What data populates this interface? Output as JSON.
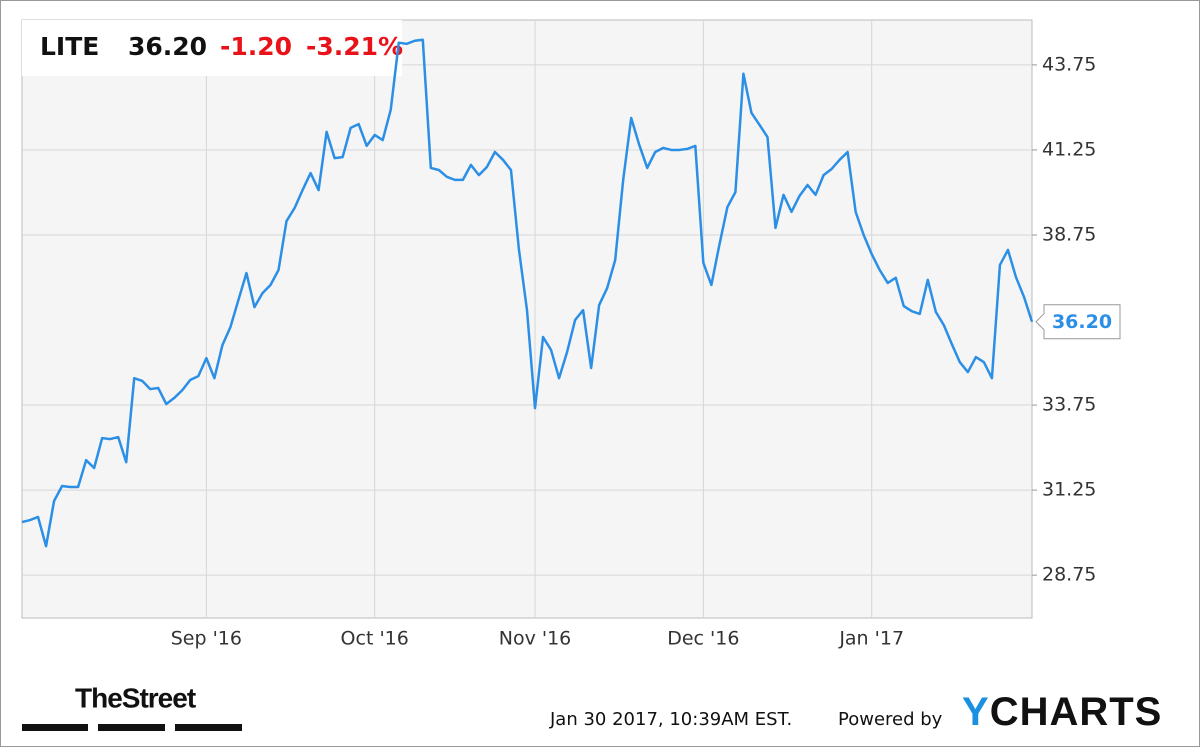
{
  "chart_data": {
    "type": "line",
    "ticker": "LITE",
    "price": "36.20",
    "change": "-1.20",
    "change_pct": "-3.21%",
    "timestamp": "Jan 30 2017, 10:39AM EST.",
    "powered_by": "Powered by",
    "brand": "YCHARTS",
    "source": "TheStreet",
    "color": "#2c8fe6",
    "categories": [
      null,
      null,
      null,
      null,
      null,
      null,
      null,
      null,
      null,
      null,
      null,
      null,
      null,
      null,
      null,
      null,
      null,
      null,
      null,
      null,
      null,
      null,
      null,
      "Sep '16",
      null,
      null,
      null,
      null,
      null,
      null,
      null,
      null,
      null,
      null,
      null,
      null,
      null,
      null,
      null,
      null,
      null,
      null,
      null,
      null,
      "Oct '16",
      null,
      null,
      null,
      null,
      null,
      null,
      null,
      null,
      null,
      null,
      null,
      null,
      null,
      null,
      null,
      null,
      null,
      null,
      null,
      "Nov '16",
      null,
      null,
      null,
      null,
      null,
      null,
      null,
      null,
      null,
      null,
      null,
      null,
      null,
      null,
      null,
      null,
      null,
      null,
      null,
      null,
      "Dec '16",
      null,
      null,
      null,
      null,
      null,
      null,
      null,
      null,
      null,
      null,
      null,
      null,
      null,
      null,
      null,
      null,
      null,
      null,
      null,
      null,
      "Jan '17",
      null,
      null,
      null,
      null,
      null,
      null,
      null,
      null,
      null,
      null,
      null,
      null,
      null,
      null,
      null,
      null,
      null,
      null,
      null,
      null
    ],
    "values": [
      30.31,
      30.37,
      30.46,
      29.6,
      30.93,
      31.37,
      31.34,
      31.34,
      32.13,
      31.9,
      32.78,
      32.75,
      32.81,
      32.07,
      34.54,
      34.46,
      34.22,
      34.25,
      33.78,
      33.96,
      34.19,
      34.49,
      34.6,
      35.13,
      34.54,
      35.51,
      36.04,
      36.84,
      37.63,
      36.63,
      37.04,
      37.28,
      37.72,
      39.16,
      39.54,
      40.07,
      40.57,
      40.07,
      41.78,
      41.01,
      41.04,
      41.9,
      42.01,
      41.37,
      41.69,
      41.54,
      42.43,
      44.4,
      44.37,
      44.46,
      44.49,
      40.72,
      40.66,
      40.46,
      40.37,
      40.37,
      40.81,
      40.51,
      40.75,
      41.19,
      40.96,
      40.66,
      38.31,
      36.54,
      33.66,
      35.75,
      35.37,
      34.54,
      35.31,
      36.25,
      36.54,
      34.84,
      36.69,
      37.19,
      38.01,
      40.37,
      42.19,
      41.4,
      40.72,
      41.19,
      41.31,
      41.25,
      41.25,
      41.28,
      41.37,
      37.93,
      37.28,
      38.46,
      39.57,
      40.01,
      43.49,
      42.34,
      41.99,
      41.63,
      38.96,
      39.93,
      39.43,
      39.9,
      40.22,
      39.93,
      40.51,
      40.69,
      40.96,
      41.19,
      39.43,
      38.75,
      38.19,
      37.72,
      37.34,
      37.49,
      36.66,
      36.51,
      36.43,
      37.43,
      36.49,
      36.1,
      35.54,
      35.01,
      34.72,
      35.16,
      35.01,
      34.54,
      37.87,
      38.31,
      37.51,
      36.93,
      36.2
    ],
    "ylim": [
      27.49,
      45.07
    ],
    "yticks": [
      {
        "value": 28.75,
        "label": "28.75"
      },
      {
        "value": 31.25,
        "label": "31.25"
      },
      {
        "value": 33.75,
        "label": "33.75"
      },
      {
        "value": 38.75,
        "label": "38.75"
      },
      {
        "value": 41.25,
        "label": "41.25"
      },
      {
        "value": 43.75,
        "label": "43.75"
      }
    ],
    "grid": true
  }
}
